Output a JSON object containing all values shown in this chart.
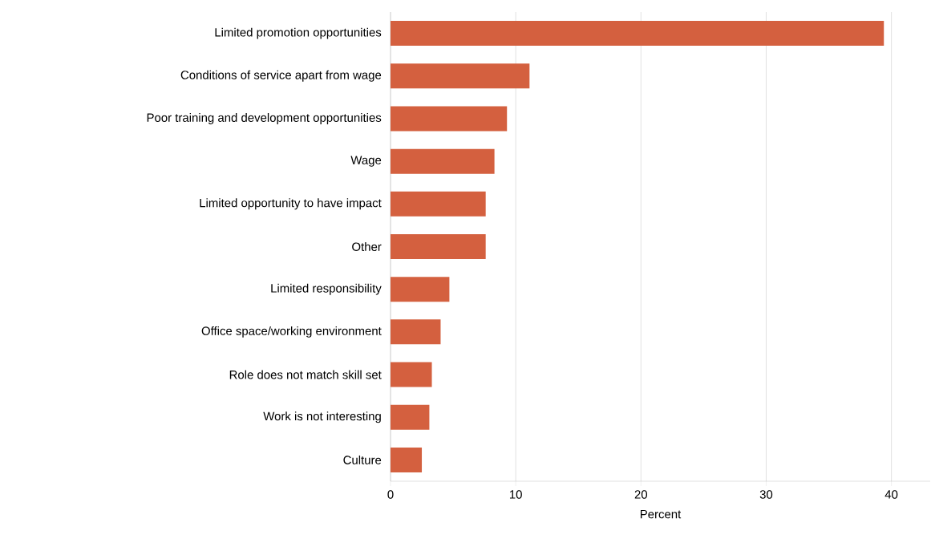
{
  "chart_data": {
    "type": "bar",
    "orientation": "horizontal",
    "xlabel": "Percent",
    "categories": [
      "Limited promotion opportunities",
      "Conditions of service apart from wage",
      "Poor training and development opportunities",
      "Wage",
      "Limited opportunity to have impact",
      "Other",
      "Limited responsibility",
      "Office space/working environment",
      "Role does not match skill set",
      "Work is not interesting",
      "Culture"
    ],
    "values": [
      39.4,
      11.1,
      9.3,
      8.3,
      7.6,
      7.6,
      4.7,
      4.0,
      3.3,
      3.1,
      2.5
    ],
    "color": "#d4603f",
    "xlim": [
      0,
      43.1
    ],
    "xticks": [
      0,
      10,
      20,
      30,
      40
    ],
    "grid": "x"
  }
}
